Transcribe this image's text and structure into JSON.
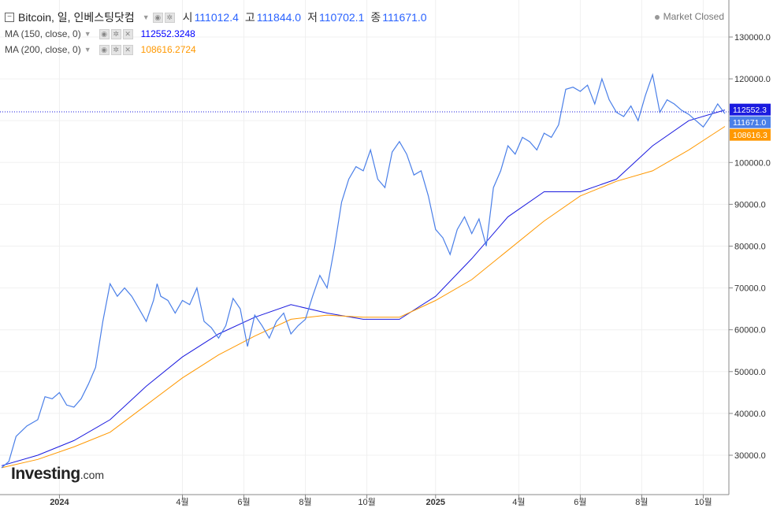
{
  "header": {
    "title": "Bitcoin, 일, 인베스팅닷컴",
    "open_label": "시",
    "open": "111012.4",
    "high_label": "고",
    "high": "111844.0",
    "low_label": "저",
    "low": "110702.1",
    "close_label": "종",
    "close": "111671.0",
    "market_status": "Market Closed"
  },
  "indicators": [
    {
      "label": "MA (150, close, 0)",
      "value": "112552.3248",
      "color": "#0000ff",
      "tag": "112552.3"
    },
    {
      "label": "MA (200, close, 0)",
      "value": "108616.2724",
      "color": "#ff9800",
      "tag": "108616.3"
    }
  ],
  "price_tag": {
    "value": "111671.0",
    "color": "#4a7fe8"
  },
  "logo": {
    "brand": "Investing",
    "suffix": ".com"
  },
  "chart_data": {
    "type": "line",
    "title": "Bitcoin, 일, 인베스팅닷컴",
    "ylim": [
      20000,
      135000
    ],
    "y_ticks": [
      "30000.0",
      "40000.0",
      "50000.0",
      "60000.0",
      "70000.0",
      "80000.0",
      "90000.0",
      "100000.0",
      "110000.0",
      "120000.0",
      "130000.0"
    ],
    "x_ticks": [
      {
        "t": 0.08,
        "label": "2024",
        "bold": true
      },
      {
        "t": 0.25,
        "label": "4월"
      },
      {
        "t": 0.335,
        "label": "6월"
      },
      {
        "t": 0.42,
        "label": "8월"
      },
      {
        "t": 0.505,
        "label": "10월"
      },
      {
        "t": 0.6,
        "label": "2025",
        "bold": true
      },
      {
        "t": 0.715,
        "label": "4월"
      },
      {
        "t": 0.8,
        "label": "6월"
      },
      {
        "t": 0.885,
        "label": "8월"
      },
      {
        "t": 0.97,
        "label": "10월"
      }
    ],
    "series": [
      {
        "name": "Bitcoin",
        "color": "#4a7fe8",
        "t": [
          0,
          0.01,
          0.02,
          0.035,
          0.05,
          0.06,
          0.07,
          0.08,
          0.09,
          0.1,
          0.11,
          0.12,
          0.13,
          0.14,
          0.15,
          0.16,
          0.17,
          0.18,
          0.19,
          0.2,
          0.21,
          0.215,
          0.22,
          0.23,
          0.24,
          0.25,
          0.26,
          0.27,
          0.28,
          0.29,
          0.3,
          0.31,
          0.32,
          0.33,
          0.34,
          0.35,
          0.36,
          0.37,
          0.38,
          0.39,
          0.4,
          0.41,
          0.42,
          0.43,
          0.44,
          0.45,
          0.46,
          0.47,
          0.48,
          0.49,
          0.5,
          0.51,
          0.52,
          0.53,
          0.54,
          0.55,
          0.56,
          0.57,
          0.58,
          0.59,
          0.6,
          0.61,
          0.62,
          0.63,
          0.64,
          0.65,
          0.66,
          0.67,
          0.68,
          0.69,
          0.7,
          0.71,
          0.72,
          0.73,
          0.74,
          0.75,
          0.76,
          0.77,
          0.78,
          0.79,
          0.8,
          0.81,
          0.82,
          0.83,
          0.84,
          0.85,
          0.86,
          0.87,
          0.88,
          0.89,
          0.9,
          0.91,
          0.92,
          0.93,
          0.94,
          0.95,
          0.96,
          0.97,
          0.98,
          0.99,
          1.0
        ],
        "v": [
          27000,
          28500,
          34500,
          37000,
          38500,
          44000,
          43500,
          45000,
          42000,
          41500,
          43500,
          47000,
          51000,
          62000,
          71000,
          68000,
          70000,
          68000,
          65000,
          62000,
          67000,
          71000,
          68000,
          67000,
          64000,
          67000,
          66000,
          70000,
          62000,
          60500,
          58000,
          61000,
          67500,
          65000,
          56000,
          63500,
          61000,
          58000,
          62000,
          64000,
          59000,
          61000,
          62500,
          68000,
          73000,
          70000,
          79500,
          90500,
          96000,
          99000,
          98000,
          103000,
          96000,
          94000,
          102500,
          105000,
          102000,
          97000,
          98000,
          92000,
          84000,
          82000,
          78000,
          84000,
          87000,
          83000,
          86500,
          80000,
          94000,
          98000,
          104000,
          102000,
          106000,
          105000,
          103000,
          107000,
          106000,
          109000,
          117500,
          118000,
          117000,
          118500,
          114000,
          120000,
          115000,
          112000,
          111000,
          113500,
          110000,
          116000,
          121000,
          112000,
          115000,
          114000,
          112500,
          111500,
          110000,
          108500,
          111000,
          114000,
          111671
        ]
      },
      {
        "name": "MA (150, close, 0)",
        "color": "#1a1adf",
        "t": [
          0,
          0.05,
          0.1,
          0.15,
          0.2,
          0.25,
          0.3,
          0.35,
          0.4,
          0.45,
          0.5,
          0.55,
          0.6,
          0.65,
          0.7,
          0.75,
          0.8,
          0.85,
          0.9,
          0.95,
          1.0
        ],
        "v": [
          27500,
          30000,
          33500,
          38500,
          46500,
          53500,
          59000,
          63000,
          66000,
          64000,
          62500,
          62500,
          68000,
          77000,
          87000,
          93000,
          93000,
          96000,
          104000,
          110000,
          112552
        ]
      },
      {
        "name": "MA (200, close, 0)",
        "color": "#ff9800",
        "t": [
          0,
          0.05,
          0.1,
          0.15,
          0.2,
          0.25,
          0.3,
          0.35,
          0.4,
          0.45,
          0.5,
          0.55,
          0.6,
          0.65,
          0.7,
          0.75,
          0.8,
          0.85,
          0.9,
          0.95,
          1.0
        ],
        "v": [
          27000,
          29000,
          32000,
          35500,
          42000,
          48500,
          54000,
          58500,
          62500,
          63500,
          63000,
          63000,
          67000,
          72000,
          79000,
          86000,
          92000,
          95500,
          98000,
          103000,
          108616
        ]
      }
    ]
  }
}
